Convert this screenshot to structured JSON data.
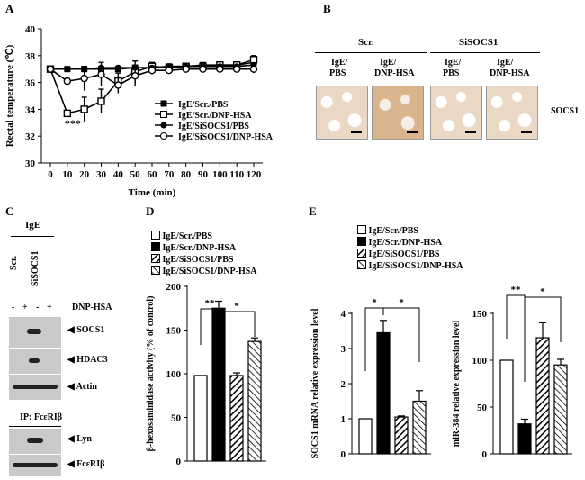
{
  "panels": {
    "A": "A",
    "B": "B",
    "C": "C",
    "D": "D",
    "E": "E"
  },
  "chart_data": [
    {
      "id": "A",
      "type": "line",
      "title": "",
      "xlabel": "Time (min)",
      "ylabel": "Rectal temperature (℃)",
      "x": [
        0,
        10,
        20,
        30,
        40,
        50,
        60,
        70,
        80,
        90,
        100,
        110,
        120
      ],
      "x_tick_labels": [
        "0",
        "10",
        "20",
        "30",
        "40",
        "50",
        "60",
        "70",
        "80",
        "90",
        "100",
        "110",
        "120"
      ],
      "ylim": [
        30,
        40
      ],
      "y_ticks": [
        30,
        32,
        34,
        36,
        38,
        40
      ],
      "series": [
        {
          "name": "IgE/Scr./PBS",
          "marker": "filled-square",
          "values": [
            37.0,
            37.0,
            37.0,
            37.0,
            37.0,
            37.1,
            37.1,
            37.2,
            37.2,
            37.3,
            37.3,
            37.3,
            37.5
          ]
        },
        {
          "name": "IgE/Scr./DNP-HSA",
          "marker": "open-square",
          "values": [
            37.0,
            33.7,
            34.0,
            34.6,
            36.1,
            36.8,
            37.2,
            37.1,
            37.2,
            37.2,
            37.3,
            37.3,
            37.7
          ]
        },
        {
          "name": "IgE/SiSOCS1/PBS",
          "marker": "filled-circle",
          "values": [
            37.0,
            37.0,
            37.0,
            37.1,
            37.1,
            37.1,
            37.1,
            37.2,
            37.2,
            37.2,
            37.2,
            37.2,
            37.3
          ]
        },
        {
          "name": "IgE/SiSOCS1/DNP-HSA",
          "marker": "open-circle",
          "values": [
            37.0,
            36.1,
            36.3,
            36.6,
            35.8,
            36.5,
            36.9,
            36.9,
            37.0,
            37.0,
            37.0,
            37.0,
            37.0
          ]
        }
      ],
      "annotation": "***"
    },
    {
      "id": "D",
      "type": "bar",
      "ylabel": "β-hexosaminidase activity (% of control)",
      "ylim": [
        0,
        200
      ],
      "y_ticks": [
        0,
        50,
        100,
        150,
        200
      ],
      "categories": [
        "IgE/Scr./PBS",
        "IgE/Scr./DNP-HSA",
        "IgE/SiSOCS1/PBS",
        "IgE/SiSOCS1/DNP-HSA"
      ],
      "values": [
        98,
        175,
        98,
        137
      ],
      "errors": [
        0,
        8,
        3,
        4
      ],
      "significance": [
        "**",
        "*"
      ]
    },
    {
      "id": "E1",
      "type": "bar",
      "ylabel": "SOCS1 mRNA relative expression level",
      "ylim": [
        0,
        4
      ],
      "y_ticks": [
        0,
        1,
        2,
        3,
        4
      ],
      "categories": [
        "IgE/Scr./PBS",
        "IgE/Scr./DNP-HSA",
        "IgE/SiSOCS1/PBS",
        "IgE/SiSOCS1/DNP-HSA"
      ],
      "values": [
        1.0,
        3.45,
        1.05,
        1.5
      ],
      "errors": [
        0,
        0.35,
        0.03,
        0.3
      ],
      "significance": [
        "*",
        "*"
      ]
    },
    {
      "id": "E2",
      "type": "bar",
      "ylabel": "miR-384 relative expression level",
      "ylim": [
        0,
        150
      ],
      "y_ticks": [
        0,
        50,
        100,
        150
      ],
      "categories": [
        "IgE/Scr./PBS",
        "IgE/Scr./DNP-HSA",
        "IgE/SiSOCS1/PBS",
        "IgE/SiSOCS1/DNP-HSA"
      ],
      "values": [
        100,
        32,
        124,
        95
      ],
      "errors": [
        0,
        5,
        16,
        6
      ],
      "significance": [
        "**",
        "*"
      ]
    }
  ],
  "legend": {
    "items": [
      "IgE/Scr./PBS",
      "IgE/Scr./DNP-HSA",
      "IgE/SiSOCS1/PBS",
      "IgE/SiSOCS1/DNP-HSA"
    ]
  },
  "panelB": {
    "group1": "Scr.",
    "group2": "SiSOCS1",
    "col_top": [
      "IgE/",
      "IgE/",
      "IgE/",
      "IgE/"
    ],
    "col_bottom": [
      "PBS",
      "DNP-HSA",
      "PBS",
      "DNP-HSA"
    ],
    "row_label": "SOCS1"
  },
  "panelC": {
    "ige": "IgE",
    "lanes": [
      "Scr.",
      "SiSOCS1"
    ],
    "dnp_label": "DNP-HSA",
    "signs": [
      "-",
      "+",
      "-",
      "+"
    ],
    "bands_top": [
      "SOCS1",
      "HDAC3",
      "Actin"
    ],
    "ip_label": "IP: FcεRIβ",
    "bands_bottom": [
      "Lyn",
      "FcεRIβ"
    ]
  }
}
